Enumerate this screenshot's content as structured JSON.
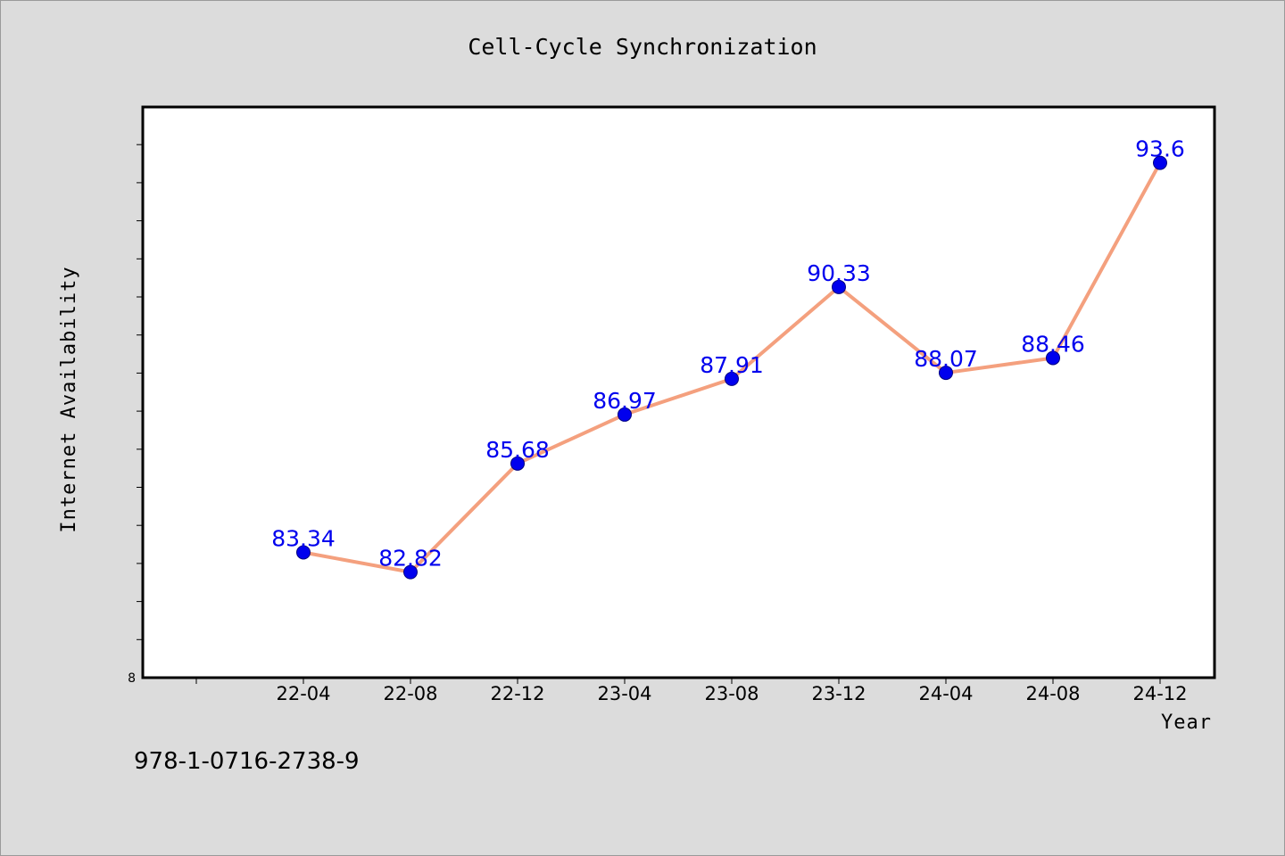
{
  "chart_data": {
    "type": "line",
    "title": "Cell-Cycle Synchronization",
    "xlabel": "Year",
    "ylabel": "Internet Availability",
    "categories": [
      "22-04",
      "22-08",
      "22-12",
      "23-04",
      "23-08",
      "23-12",
      "24-04",
      "24-08",
      "24-12"
    ],
    "series": [
      {
        "values": [
          83.34,
          82.82,
          85.68,
          86.97,
          87.91,
          90.33,
          88.07,
          88.46,
          93.6
        ]
      }
    ],
    "data_labels": [
      "83.34",
      "82.82",
      "85.68",
      "86.97",
      "87.91",
      "90.33",
      "88.07",
      "88.46",
      "93.6"
    ],
    "y_min_label": "8",
    "ylim": [
      80.04,
      95.07
    ],
    "grid": false,
    "colors": {
      "line": "#f4a07e",
      "marker": "#0000ee",
      "label": "#0000ee"
    }
  },
  "footer": {
    "text": "978-1-0716-2738-9"
  }
}
